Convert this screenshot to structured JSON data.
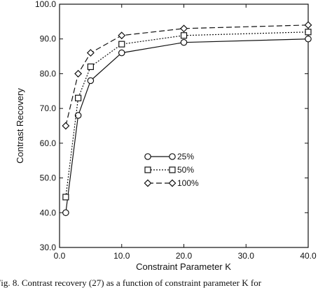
{
  "chart_data": {
    "type": "line",
    "title": "",
    "xlabel": "Constraint Parameter K",
    "ylabel": "Contrast Recovery",
    "xlim": [
      0,
      40
    ],
    "ylim": [
      30,
      100
    ],
    "xticks": [
      0,
      10,
      20,
      30,
      40
    ],
    "yticks": [
      30,
      40,
      50,
      60,
      70,
      80,
      90,
      100
    ],
    "xtick_labels": [
      "0.0",
      "10.0",
      "20.0",
      "30.0",
      "40.0"
    ],
    "ytick_labels": [
      "30.0",
      "40.0",
      "50.0",
      "60.0",
      "70.0",
      "80.0",
      "90.0",
      "100.0"
    ],
    "grid": false,
    "legend_position": "center-right",
    "x": [
      1,
      3,
      5,
      10,
      20,
      40
    ],
    "series": [
      {
        "name": "25%",
        "marker": "circle",
        "line": "solid",
        "values": [
          40,
          68,
          78,
          86,
          89,
          90
        ]
      },
      {
        "name": "50%",
        "marker": "square",
        "line": "dotted",
        "values": [
          44.5,
          73,
          82,
          88.5,
          91,
          92
        ]
      },
      {
        "name": "100%",
        "marker": "diamond",
        "line": "dashed",
        "values": [
          65,
          80,
          86,
          91,
          93,
          94
        ]
      }
    ]
  },
  "caption": "Fig. 8.   Contrast recovery (27) as a function of constraint parameter K for"
}
